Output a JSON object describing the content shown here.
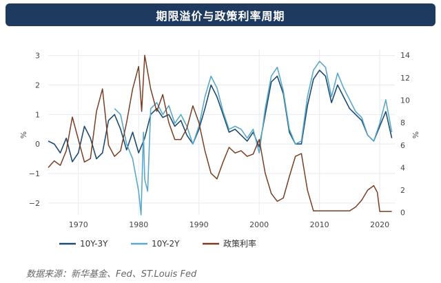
{
  "header": {
    "title": "期限溢价与政策利率周期"
  },
  "source_note": "数据来源：新华基金、Fed、ST.Louis Fed",
  "chart_data": {
    "type": "line",
    "x_range": [
      1965,
      2022.5
    ],
    "x_ticks": [
      1970,
      1980,
      1990,
      2000,
      2010,
      2020
    ],
    "y_left": {
      "label": "%",
      "range": [
        -2.4,
        3.2
      ],
      "ticks": [
        -2,
        -1,
        0,
        1,
        2,
        3
      ]
    },
    "y_right": {
      "label": "%",
      "range": [
        -0.2,
        14.5
      ],
      "ticks": [
        0,
        2,
        4,
        6,
        8,
        10,
        12,
        14
      ]
    },
    "grid": true,
    "legend_position": "bottom-left",
    "series": [
      {
        "name": "10Y-3Y",
        "axis": "left",
        "color": "#1b4a72",
        "width": 1.6,
        "points": [
          [
            1965,
            0.1
          ],
          [
            1966,
            0.0
          ],
          [
            1967,
            -0.3
          ],
          [
            1968,
            0.2
          ],
          [
            1969,
            -0.6
          ],
          [
            1970,
            -0.3
          ],
          [
            1971,
            0.6
          ],
          [
            1972,
            0.2
          ],
          [
            1973,
            -0.5
          ],
          [
            1974,
            -0.3
          ],
          [
            1975,
            0.8
          ],
          [
            1976,
            1.0
          ],
          [
            1977,
            0.5
          ],
          [
            1978,
            -0.2
          ],
          [
            1979,
            0.4
          ],
          [
            1980,
            -0.3
          ],
          [
            1981,
            0.2
          ],
          [
            1982,
            1.0
          ],
          [
            1983,
            1.2
          ],
          [
            1984,
            0.9
          ],
          [
            1985,
            1.0
          ],
          [
            1986,
            0.6
          ],
          [
            1987,
            0.8
          ],
          [
            1988,
            0.3
          ],
          [
            1989,
            0.0
          ],
          [
            1990,
            0.5
          ],
          [
            1991,
            1.2
          ],
          [
            1992,
            2.0
          ],
          [
            1993,
            1.6
          ],
          [
            1994,
            1.0
          ],
          [
            1995,
            0.4
          ],
          [
            1996,
            0.5
          ],
          [
            1997,
            0.3
          ],
          [
            1998,
            0.1
          ],
          [
            1999,
            0.4
          ],
          [
            2000,
            -0.1
          ],
          [
            2001,
            1.0
          ],
          [
            2002,
            2.1
          ],
          [
            2003,
            2.3
          ],
          [
            2004,
            1.7
          ],
          [
            2005,
            0.4
          ],
          [
            2006,
            0.0
          ],
          [
            2007,
            0.0
          ],
          [
            2008,
            1.3
          ],
          [
            2009,
            2.2
          ],
          [
            2010,
            2.5
          ],
          [
            2011,
            2.3
          ],
          [
            2012,
            1.4
          ],
          [
            2013,
            2.0
          ],
          [
            2014,
            1.6
          ],
          [
            2015,
            1.2
          ],
          [
            2016,
            1.0
          ],
          [
            2017,
            0.8
          ],
          [
            2018,
            0.3
          ],
          [
            2019,
            0.1
          ],
          [
            2020,
            0.6
          ],
          [
            2021,
            1.1
          ],
          [
            2022,
            0.2
          ]
        ]
      },
      {
        "name": "10Y-2Y",
        "axis": "left",
        "color": "#5aa8c9",
        "width": 1.6,
        "points": [
          [
            1976,
            1.2
          ],
          [
            1977,
            1.0
          ],
          [
            1978,
            0.0
          ],
          [
            1979,
            -0.5
          ],
          [
            1980,
            -1.6
          ],
          [
            1980.4,
            -2.4
          ],
          [
            1980.8,
            0.4
          ],
          [
            1981,
            -1.2
          ],
          [
            1981.5,
            -1.6
          ],
          [
            1982,
            1.2
          ],
          [
            1983,
            1.4
          ],
          [
            1984,
            1.0
          ],
          [
            1985,
            1.3
          ],
          [
            1986,
            0.7
          ],
          [
            1987,
            1.0
          ],
          [
            1988,
            0.6
          ],
          [
            1989,
            0.0
          ],
          [
            1990,
            0.6
          ],
          [
            1991,
            1.6
          ],
          [
            1992,
            2.3
          ],
          [
            1993,
            1.9
          ],
          [
            1994,
            1.1
          ],
          [
            1995,
            0.5
          ],
          [
            1996,
            0.6
          ],
          [
            1997,
            0.5
          ],
          [
            1998,
            0.2
          ],
          [
            1999,
            0.5
          ],
          [
            2000,
            -0.3
          ],
          [
            2001,
            1.2
          ],
          [
            2002,
            2.3
          ],
          [
            2003,
            2.6
          ],
          [
            2004,
            1.8
          ],
          [
            2005,
            0.5
          ],
          [
            2006,
            0.0
          ],
          [
            2007,
            0.1
          ],
          [
            2008,
            1.6
          ],
          [
            2009,
            2.5
          ],
          [
            2010,
            2.8
          ],
          [
            2011,
            2.6
          ],
          [
            2012,
            1.6
          ],
          [
            2013,
            2.4
          ],
          [
            2014,
            1.9
          ],
          [
            2015,
            1.5
          ],
          [
            2016,
            1.1
          ],
          [
            2017,
            0.9
          ],
          [
            2018,
            0.3
          ],
          [
            2019,
            0.1
          ],
          [
            2020,
            0.7
          ],
          [
            2021,
            1.5
          ],
          [
            2022,
            0.4
          ]
        ]
      },
      {
        "name": "政策利率",
        "axis": "right",
        "color": "#7a3d22",
        "width": 1.5,
        "points": [
          [
            1965,
            4.0
          ],
          [
            1966,
            4.6
          ],
          [
            1967,
            4.2
          ],
          [
            1968,
            5.5
          ],
          [
            1969,
            8.5
          ],
          [
            1970,
            6.5
          ],
          [
            1971,
            4.5
          ],
          [
            1972,
            4.8
          ],
          [
            1973,
            9.0
          ],
          [
            1974,
            11.0
          ],
          [
            1975,
            6.0
          ],
          [
            1976,
            5.0
          ],
          [
            1977,
            5.5
          ],
          [
            1978,
            8.0
          ],
          [
            1979,
            11.0
          ],
          [
            1980,
            13.0
          ],
          [
            1980.5,
            9.0
          ],
          [
            1981,
            14.0
          ],
          [
            1982,
            11.0
          ],
          [
            1983,
            9.0
          ],
          [
            1984,
            10.5
          ],
          [
            1985,
            8.0
          ],
          [
            1986,
            6.5
          ],
          [
            1987,
            6.5
          ],
          [
            1988,
            7.5
          ],
          [
            1989,
            9.5
          ],
          [
            1990,
            8.0
          ],
          [
            1991,
            5.5
          ],
          [
            1992,
            3.5
          ],
          [
            1993,
            3.0
          ],
          [
            1994,
            4.5
          ],
          [
            1995,
            5.8
          ],
          [
            1996,
            5.3
          ],
          [
            1997,
            5.5
          ],
          [
            1998,
            5.0
          ],
          [
            1999,
            5.2
          ],
          [
            2000,
            6.5
          ],
          [
            2001,
            3.5
          ],
          [
            2002,
            1.7
          ],
          [
            2003,
            1.0
          ],
          [
            2004,
            1.3
          ],
          [
            2005,
            3.2
          ],
          [
            2006,
            5.0
          ],
          [
            2007,
            5.25
          ],
          [
            2008,
            2.0
          ],
          [
            2009,
            0.15
          ],
          [
            2015,
            0.15
          ],
          [
            2016,
            0.5
          ],
          [
            2017,
            1.1
          ],
          [
            2018,
            2.0
          ],
          [
            2019,
            2.4
          ],
          [
            2019.6,
            1.8
          ],
          [
            2020,
            0.1
          ],
          [
            2022,
            0.1
          ]
        ]
      }
    ]
  }
}
